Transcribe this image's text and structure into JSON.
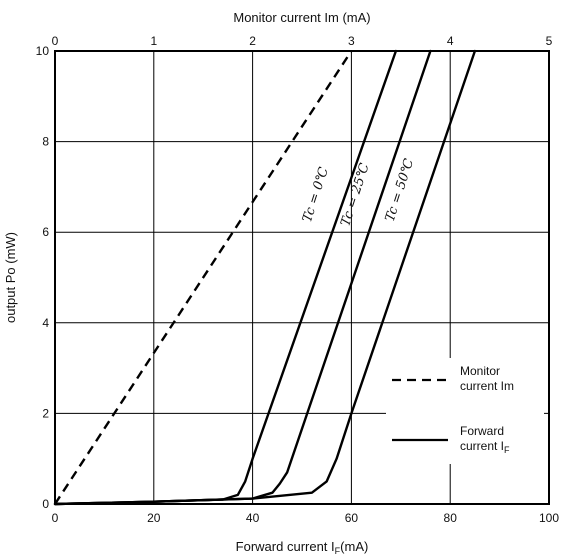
{
  "chart_data": {
    "type": "line",
    "xlabel": "Forward current I",
    "xlabel_sub": "F",
    "xlabel_unit": "(mA)",
    "ylabel": "output Po (mW)",
    "x2label": "Monitor current Im  (mA)",
    "xlim": [
      0,
      100
    ],
    "ylim": [
      0,
      10
    ],
    "x2lim": [
      0,
      5
    ],
    "x_ticks": [
      "0",
      "20",
      "40",
      "60",
      "80",
      "100"
    ],
    "x2_ticks": [
      "0",
      "1",
      "2",
      "3",
      "4",
      "5"
    ],
    "y_ticks": [
      "0",
      "2",
      "4",
      "6",
      "8",
      "10"
    ],
    "grid": true,
    "series": [
      {
        "label": "Tc = 0℃",
        "style": "solid",
        "axis": "bottom",
        "x": [
          0,
          20,
          34,
          37,
          38.5,
          40,
          69
        ],
        "y": [
          0,
          0.05,
          0.1,
          0.2,
          0.5,
          1.0,
          10
        ]
      },
      {
        "label": "Tc = 25℃",
        "style": "solid",
        "axis": "bottom",
        "x": [
          0,
          20,
          40,
          44,
          45.5,
          47,
          76
        ],
        "y": [
          0,
          0.05,
          0.12,
          0.25,
          0.45,
          0.7,
          10
        ]
      },
      {
        "label": "Tc = 50℃",
        "style": "solid",
        "axis": "bottom",
        "x": [
          0,
          20,
          40,
          52,
          55,
          57,
          60,
          85
        ],
        "y": [
          0,
          0.05,
          0.12,
          0.25,
          0.5,
          1.0,
          2.0,
          10
        ]
      },
      {
        "label": "Monitor current Im",
        "style": "dashed",
        "axis": "top",
        "x": [
          0,
          3
        ],
        "y": [
          0,
          10
        ]
      }
    ],
    "curve_labels": [
      {
        "text": "Tc = 0℃",
        "x": 53.5,
        "y": 6.8,
        "angle": -72
      },
      {
        "text": "Tc = 25℃",
        "x": 61.5,
        "y": 6.8,
        "angle": -72
      },
      {
        "text": "Tc = 50℃",
        "x": 70.5,
        "y": 6.9,
        "angle": -72
      }
    ],
    "legend": {
      "position": "bottom-right",
      "items": [
        {
          "style": "dashed",
          "line1": "Monitor",
          "line2": "current Im",
          "sub": ""
        },
        {
          "style": "solid",
          "line1": "Forward",
          "line2": "current I",
          "sub": "F"
        }
      ]
    }
  }
}
